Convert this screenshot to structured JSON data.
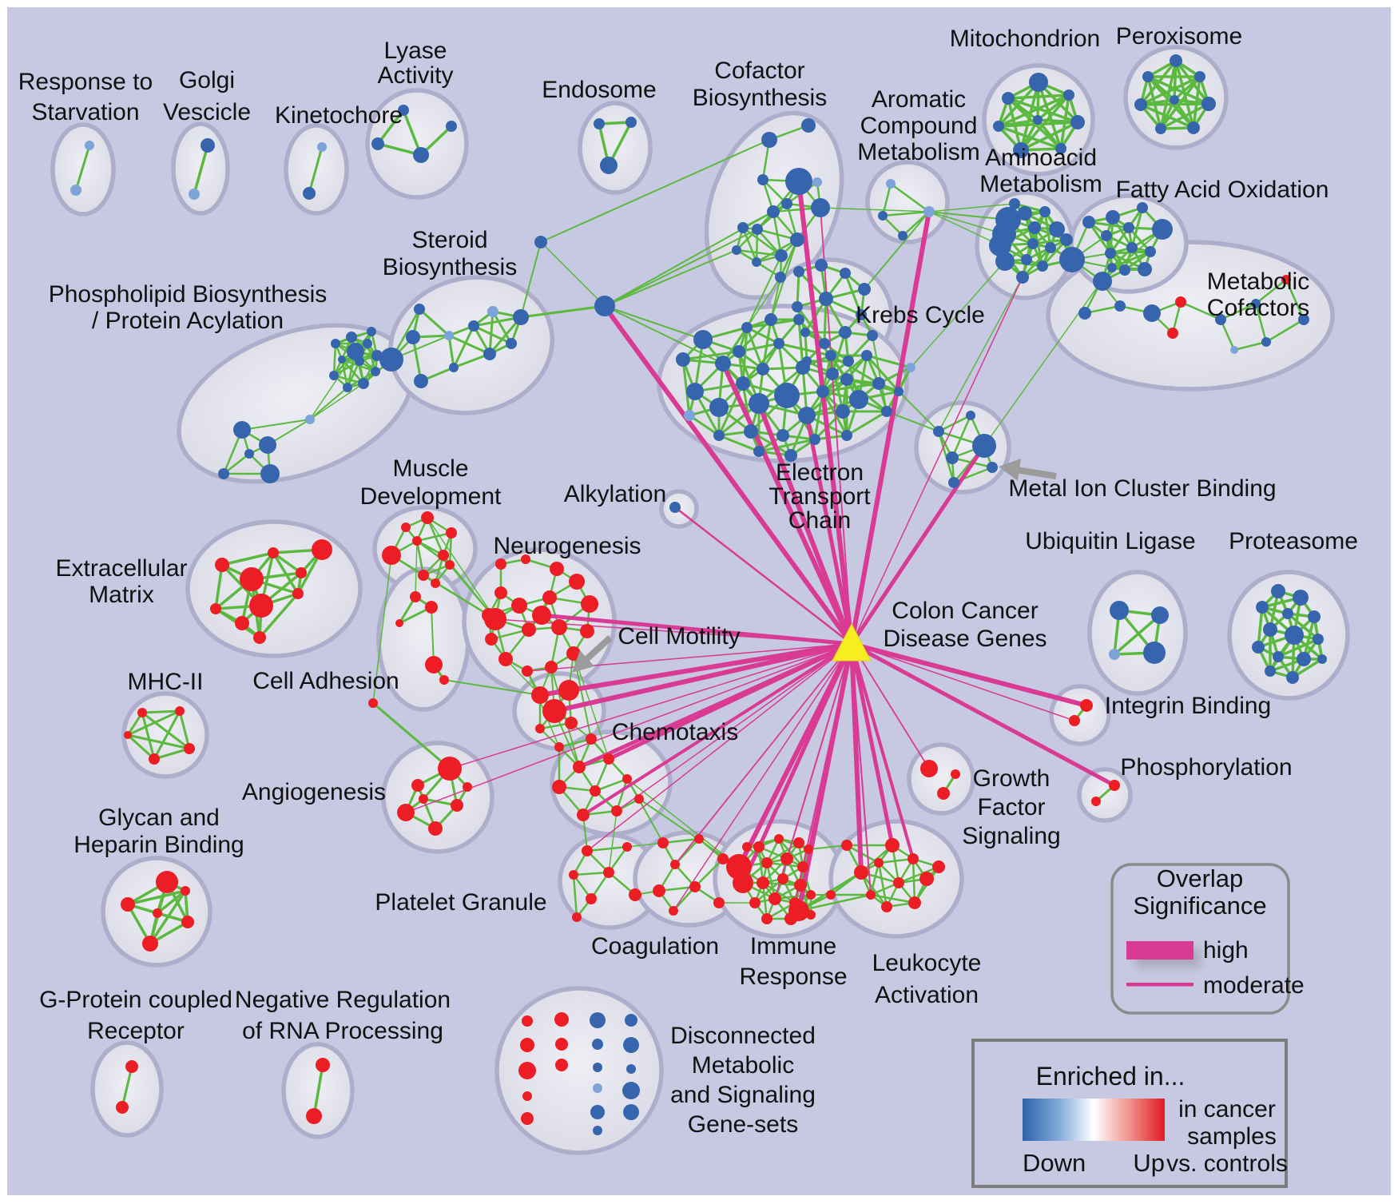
{
  "figure": {
    "type": "enrichment-map-network",
    "background": "#c7c8e1"
  },
  "labels": {
    "response_starvation": [
      "Response to",
      "Starvation"
    ],
    "golgi_vescicle": [
      "Golgi",
      "Vescicle"
    ],
    "kinetochore": [
      "Kinetochore"
    ],
    "lyase_activity": [
      "Lyase",
      "Activity"
    ],
    "endosome": [
      "Endosome"
    ],
    "cofactor_biosynthesis": [
      "Cofactor",
      "Biosynthesis"
    ],
    "aromatic_compound_metabolism": [
      "Aromatic",
      "Compound",
      "Metabolism"
    ],
    "mitochondrion": [
      "Mitochondrion"
    ],
    "peroxisome": [
      "Peroxisome"
    ],
    "aminoacid_metabolism": [
      "Aminoacid",
      "Metabolism"
    ],
    "fatty_acid_oxidation": [
      "Fatty Acid Oxidation"
    ],
    "metabolic_cofactors": [
      "Metabolic",
      "Cofactors"
    ],
    "steroid_biosynthesis": [
      "Steroid",
      "Biosynthesis"
    ],
    "phospholipid": [
      "Phospholipid Biosynthesis",
      "/ Protein Acylation"
    ],
    "krebs_cycle": [
      "Krebs Cycle"
    ],
    "electron_transport_chain": [
      "Electron",
      "Transport",
      "Chain"
    ],
    "metal_ion_cluster_binding": [
      "Metal Ion Cluster Binding"
    ],
    "muscle_development": [
      "Muscle",
      "Development"
    ],
    "alkylation": [
      "Alkylation"
    ],
    "neurogenesis": [
      "Neurogenesis"
    ],
    "extracellular_matrix": [
      "Extracellular",
      "Matrix"
    ],
    "cell_adhesion": [
      "Cell Adhesion"
    ],
    "cell_motility": [
      "Cell Motility"
    ],
    "mhc_ii": [
      "MHC-II"
    ],
    "angiogenesis": [
      "Angiogenesis"
    ],
    "chemotaxis": [
      "Chemotaxis"
    ],
    "glycan_heparin": [
      "Glycan and",
      "Heparin Binding"
    ],
    "gpcr": [
      "G-Protein coupled",
      "Receptor"
    ],
    "neg_reg_rna": [
      "Negative Regulation",
      "of RNA Processing"
    ],
    "platelet_granule": [
      "Platelet Granule"
    ],
    "coagulation": [
      "Coagulation"
    ],
    "immune_response": [
      "Immune",
      "Response"
    ],
    "leukocyte_activation": [
      "Leukocyte",
      "Activation"
    ],
    "growth_factor_signaling": [
      "Growth",
      "Factor",
      "Signaling"
    ],
    "integrin_binding": [
      "Integrin Binding"
    ],
    "phosphorylation": [
      "Phosphorylation"
    ],
    "ubiquitin_ligase": [
      "Ubiquitin Ligase"
    ],
    "proteasome": [
      "Proteasome"
    ],
    "colon_cancer_disease_genes": [
      "Colon Cancer",
      "Disease Genes"
    ],
    "disconnected": [
      "Disconnected",
      "Metabolic",
      "and Signaling",
      "Gene-sets"
    ]
  },
  "legend_overlap": {
    "title_line1": "Overlap",
    "title_line2": "Significance",
    "high_label": "high",
    "moderate_label": "moderate"
  },
  "legend_enriched": {
    "title": "Enriched in...",
    "down_label": "Down",
    "up_label": "Up",
    "note_line1": "in cancer",
    "note_line2": "samples",
    "note_line3": "vs. controls"
  },
  "colors": {
    "background": "#c7c8e1",
    "cluster_fill_inner": "#ecedf4",
    "cluster_fill_outer": "#d8d8e4",
    "cluster_stroke": "#aeadcb",
    "edge_green": "#5cb93f",
    "edge_magenta": "#d83a94",
    "node_down": "#3765ad",
    "node_down_light": "#7da4d8",
    "node_up": "#ec1d24",
    "disease_node_yellow": "#f6ee1f",
    "arrow_gray": "#9b9b9b",
    "legend_border": "#8b8b8b"
  }
}
